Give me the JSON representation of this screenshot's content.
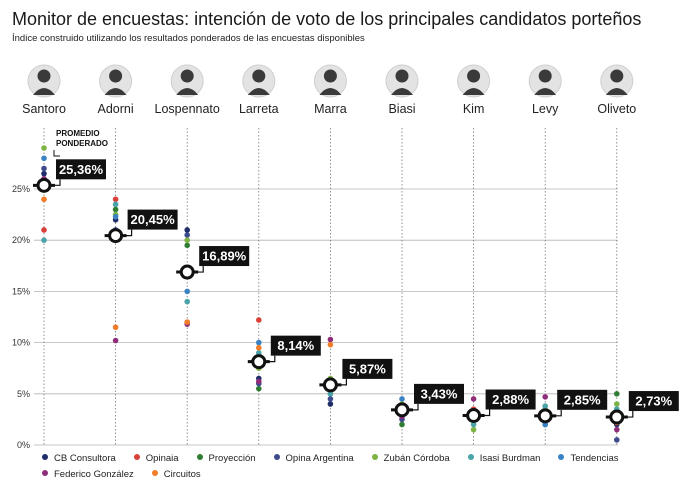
{
  "header": {
    "title": "Monitor de encuestas: intención de voto de los principales candidatos porteños",
    "subtitle": "Índice construido utilizando los resultados ponderados de las encuestas disponibles"
  },
  "chart_data": {
    "type": "scatter",
    "annotation": "PROMEDIO PONDERADO",
    "ylim": [
      0,
      30
    ],
    "y_ticks": [
      "0%",
      "5%",
      "10%",
      "15%",
      "20%",
      "25%"
    ],
    "y_tick_values": [
      0,
      5,
      10,
      15,
      20,
      25
    ],
    "grid": true,
    "legend_position": "bottom",
    "categories": [
      "Santoro",
      "Adorni",
      "Lospennato",
      "Larreta",
      "Marra",
      "Biasi",
      "Kim",
      "Levy",
      "Oliveto"
    ],
    "averages": [
      25.36,
      20.45,
      16.89,
      8.14,
      5.87,
      3.43,
      2.88,
      2.85,
      2.73
    ],
    "average_labels": [
      "25,36%",
      "20,45%",
      "16,89%",
      "8,14%",
      "5,87%",
      "3,43%",
      "2,88%",
      "2,85%",
      "2,73%"
    ],
    "series": [
      {
        "name": "CB Consultora",
        "color": "#1f2d6b",
        "values": [
          26.5,
          22.0,
          21.0,
          6.5,
          4.0,
          3.0,
          2.5,
          3.0,
          2.0
        ]
      },
      {
        "name": "Opinaia",
        "color": "#d9403a",
        "values": [
          21.0,
          24.0,
          12.0,
          12.2,
          5.5,
          3.2,
          3.5,
          2.5,
          3.0
        ]
      },
      {
        "name": "Proyección",
        "color": "#2e7d32",
        "values": [
          25.5,
          23.0,
          19.5,
          5.5,
          5.0,
          2.0,
          3.0,
          2.0,
          5.0
        ]
      },
      {
        "name": "Opina Argentina",
        "color": "#3d4a8c",
        "values": [
          27.0,
          21.0,
          20.5,
          6.0,
          4.5,
          2.5,
          2.8,
          2.5,
          0.5
        ]
      },
      {
        "name": "Zubán Córdoba",
        "color": "#7cb342",
        "values": [
          29.0,
          22.5,
          20.0,
          7.5,
          6.5,
          4.0,
          1.5,
          3.5,
          4.0
        ]
      },
      {
        "name": "Isasi Burdman",
        "color": "#4aa3a8",
        "values": [
          20.0,
          23.5,
          14.0,
          9.0,
          5.0,
          3.5,
          2.0,
          3.8,
          3.5
        ]
      },
      {
        "name": "Tendencias",
        "color": "#3b82c4",
        "values": [
          28.0,
          22.3,
          15.0,
          10.0,
          6.0,
          4.5,
          2.5,
          2.0,
          2.5
        ]
      },
      {
        "name": "Federico González",
        "color": "#8e2d7a",
        "values": [
          26.0,
          10.2,
          11.8,
          6.2,
          10.3,
          2.8,
          4.5,
          4.7,
          1.5
        ]
      },
      {
        "name": "Circuitos",
        "color": "#f07c2a",
        "values": [
          24.0,
          11.5,
          12.0,
          9.5,
          9.8,
          3.8,
          3.2,
          3.0,
          2.2
        ]
      }
    ]
  }
}
